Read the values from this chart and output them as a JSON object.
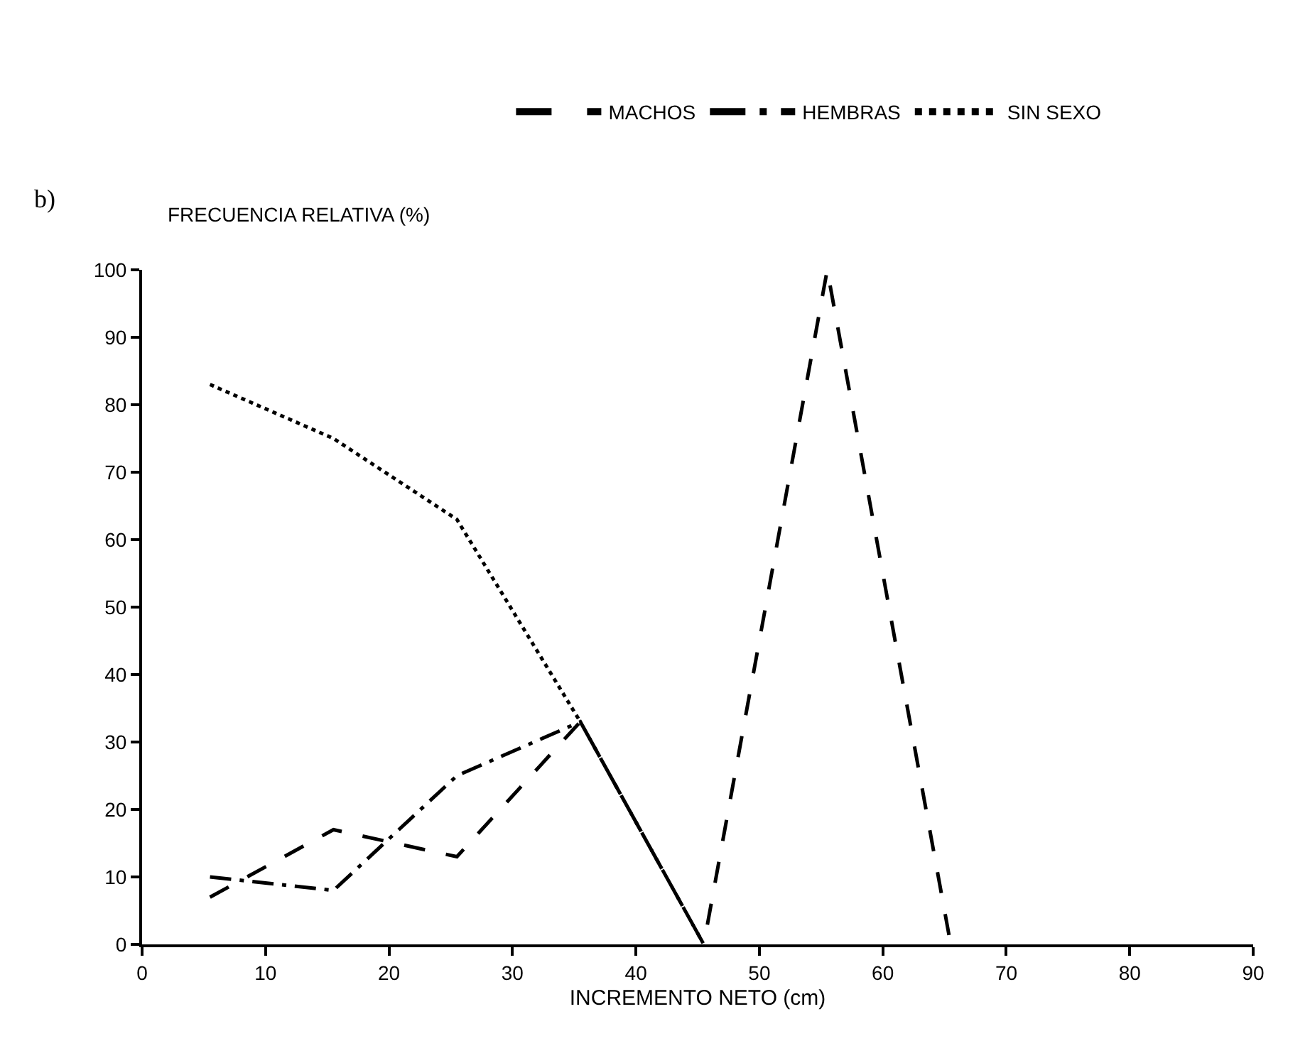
{
  "chart_data": {
    "type": "line",
    "title": "b)",
    "ylabel": "FRECUENCIA RELATIVA (%)",
    "xlabel": "INCREMENTO NETO (cm)",
    "xlim": [
      0,
      90
    ],
    "xticks": [
      0,
      10,
      20,
      30,
      40,
      50,
      60,
      70,
      80,
      90
    ],
    "ylim": [
      0,
      100
    ],
    "yticks": [
      0,
      10,
      20,
      30,
      40,
      50,
      60,
      70,
      80,
      90,
      100
    ],
    "grid": false,
    "legend": "top",
    "marker": "none",
    "series": [
      {
        "name": "MACHOS",
        "color": "#000000",
        "line_style": "dashed",
        "x": [
          5.5,
          15.5,
          25.5,
          35.5,
          45.5,
          55.5,
          65.5
        ],
        "values": [
          7,
          17,
          13,
          33,
          0,
          100,
          0
        ]
      },
      {
        "name": "HEMBRAS",
        "color": "#000000",
        "line_style": "dashdot",
        "x": [
          5.5,
          15.5,
          25.5,
          35.5,
          45.5
        ],
        "values": [
          10,
          8,
          25,
          33,
          0
        ]
      },
      {
        "name": "SIN SEXO",
        "color": "#000000",
        "line_style": "dotted",
        "x": [
          5.5,
          15.5,
          25.5,
          35.5
        ],
        "values": [
          83,
          75,
          63,
          33
        ]
      }
    ]
  }
}
